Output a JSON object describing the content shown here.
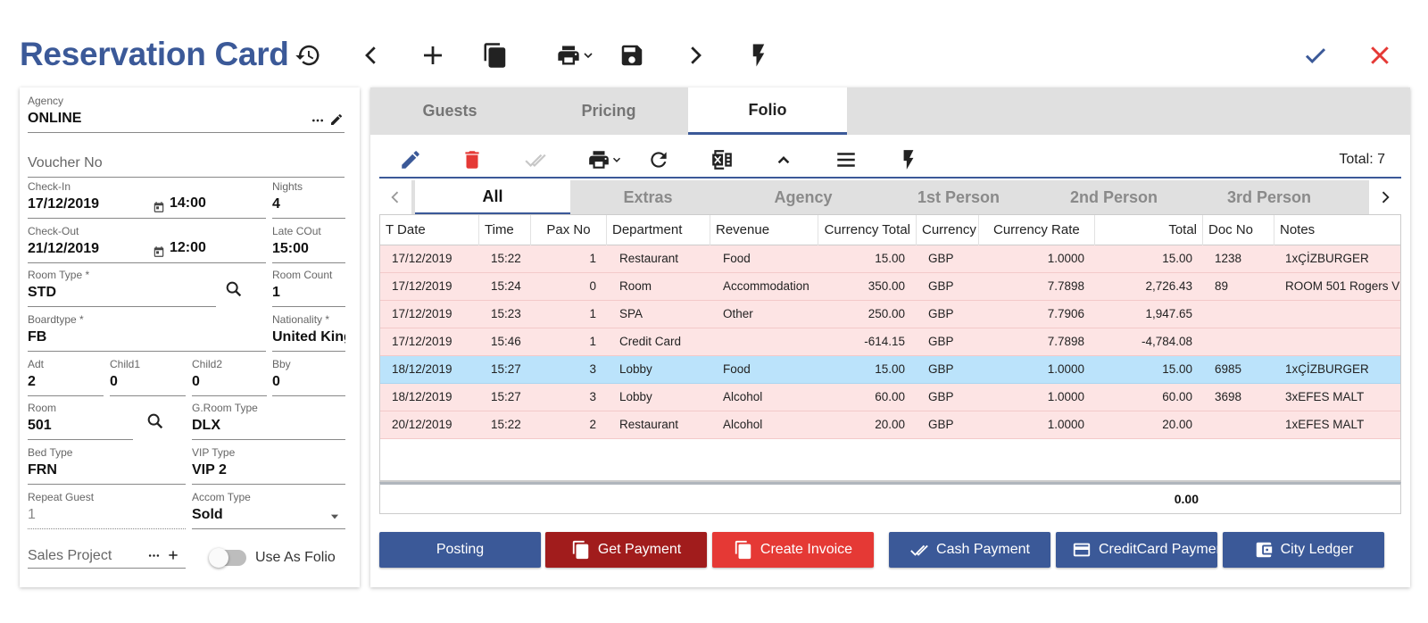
{
  "header": {
    "title": "Reservation Card",
    "accent_color": "#3b5998",
    "icons": [
      "history-icon",
      "chevron-left-icon",
      "plus-icon",
      "copy-icon",
      "print-icon",
      "save-icon",
      "chevron-right-icon",
      "flash-icon",
      "check-icon",
      "close-icon"
    ]
  },
  "form": {
    "agency": {
      "label": "Agency",
      "value": "ONLINE"
    },
    "voucher": {
      "placeholder": "Voucher No"
    },
    "check_in": {
      "label": "Check-In",
      "date": "17/12/2019",
      "time": "14:00"
    },
    "nights": {
      "label": "Nights",
      "value": "4"
    },
    "check_out": {
      "label": "Check-Out",
      "date": "21/12/2019",
      "time": "12:00"
    },
    "late_cout": {
      "label": "Late COut",
      "value": "15:00"
    },
    "room_type": {
      "label": "Room Type *",
      "value": "STD"
    },
    "room_count": {
      "label": "Room Count",
      "value": "1"
    },
    "boardtype": {
      "label": "Boardtype *",
      "value": "FB"
    },
    "nationality": {
      "label": "Nationality *",
      "value": "United Kingdom"
    },
    "adt": {
      "label": "Adt",
      "value": "2"
    },
    "child1": {
      "label": "Child1",
      "value": "0"
    },
    "child2": {
      "label": "Child2",
      "value": "0"
    },
    "bby": {
      "label": "Bby",
      "value": "0"
    },
    "room": {
      "label": "Room",
      "value": "501"
    },
    "g_room_type": {
      "label": "G.Room Type",
      "value": "DLX"
    },
    "bed_type": {
      "label": "Bed Type",
      "value": "FRN"
    },
    "vip_type": {
      "label": "VIP Type",
      "value": "VIP 2"
    },
    "repeat_guest": {
      "label": "Repeat Guest",
      "value": "1"
    },
    "accom_type": {
      "label": "Accom Type",
      "value": "Sold"
    },
    "sales_project": {
      "placeholder": "Sales Project"
    },
    "use_as_folio": {
      "label": "Use As Folio",
      "checked": false
    }
  },
  "tabs": [
    {
      "label": "Guests",
      "active": false
    },
    {
      "label": "Pricing",
      "active": false
    },
    {
      "label": "Folio",
      "active": true
    }
  ],
  "toolbar": {
    "total_label": "Total: 7"
  },
  "subtabs": [
    {
      "label": "All",
      "active": true
    },
    {
      "label": "Extras",
      "active": false
    },
    {
      "label": "Agency",
      "active": false
    },
    {
      "label": "1st Person",
      "active": false
    },
    {
      "label": "2nd Person",
      "active": false
    },
    {
      "label": "3rd Person",
      "active": false
    }
  ],
  "grid": {
    "columns": [
      "T Date",
      "Time",
      "Pax No",
      "Department",
      "Revenue",
      "Currency Total",
      "Currency",
      "Currency Rate",
      "Total",
      "Doc No",
      "Notes"
    ],
    "rows": [
      {
        "date": "17/12/2019",
        "time": "15:22",
        "pax": "1",
        "department": "Restaurant",
        "revenue": "Food",
        "currency_total": "15.00",
        "currency": "GBP",
        "rate": "1.0000",
        "total": "15.00",
        "doc": "1238",
        "notes": "1xÇİZBURGER",
        "selected": false
      },
      {
        "date": "17/12/2019",
        "time": "15:24",
        "pax": "0",
        "department": "Room",
        "revenue": "Accommodation",
        "currency_total": "350.00",
        "currency": "GBP",
        "rate": "7.7898",
        "total": "2,726.43",
        "doc": "89",
        "notes": "ROOM 501 Rogers V",
        "selected": false
      },
      {
        "date": "17/12/2019",
        "time": "15:23",
        "pax": "1",
        "department": "SPA",
        "revenue": "Other",
        "currency_total": "250.00",
        "currency": "GBP",
        "rate": "7.7906",
        "total": "1,947.65",
        "doc": "",
        "notes": "",
        "selected": false
      },
      {
        "date": "17/12/2019",
        "time": "15:46",
        "pax": "1",
        "department": "Credit Card",
        "revenue": "",
        "currency_total": "-614.15",
        "currency": "GBP",
        "rate": "7.7898",
        "total": "-4,784.08",
        "doc": "",
        "notes": "",
        "selected": false
      },
      {
        "date": "18/12/2019",
        "time": "15:27",
        "pax": "3",
        "department": "Lobby",
        "revenue": "Food",
        "currency_total": "15.00",
        "currency": "GBP",
        "rate": "1.0000",
        "total": "15.00",
        "doc": "6985",
        "notes": "1xÇİZBURGER",
        "selected": true
      },
      {
        "date": "18/12/2019",
        "time": "15:27",
        "pax": "3",
        "department": "Lobby",
        "revenue": "Alcohol",
        "currency_total": "60.00",
        "currency": "GBP",
        "rate": "1.0000",
        "total": "60.00",
        "doc": "3698",
        "notes": "3xEFES MALT",
        "selected": false
      },
      {
        "date": "20/12/2019",
        "time": "15:22",
        "pax": "2",
        "department": "Restaurant",
        "revenue": "Alcohol",
        "currency_total": "20.00",
        "currency": "GBP",
        "rate": "1.0000",
        "total": "20.00",
        "doc": "",
        "notes": "1xEFES MALT",
        "selected": false
      }
    ],
    "sum_total": "0.00"
  },
  "buttons": [
    {
      "label": "Posting",
      "color": "#3b5998",
      "icon": ""
    },
    {
      "label": "Get Payment",
      "color": "#a11c1c",
      "icon": "copy-icon"
    },
    {
      "label": "Create Invoice",
      "color": "#e53935",
      "icon": "copy-icon"
    },
    {
      "label": "Cash Payment",
      "color": "#3b5998",
      "icon": "double-check-icon"
    },
    {
      "label": "CreditCard Payment",
      "color": "#3b5998",
      "icon": "credit-card-icon"
    },
    {
      "label": "City Ledger",
      "color": "#3b5998",
      "icon": "wallet-icon"
    }
  ]
}
